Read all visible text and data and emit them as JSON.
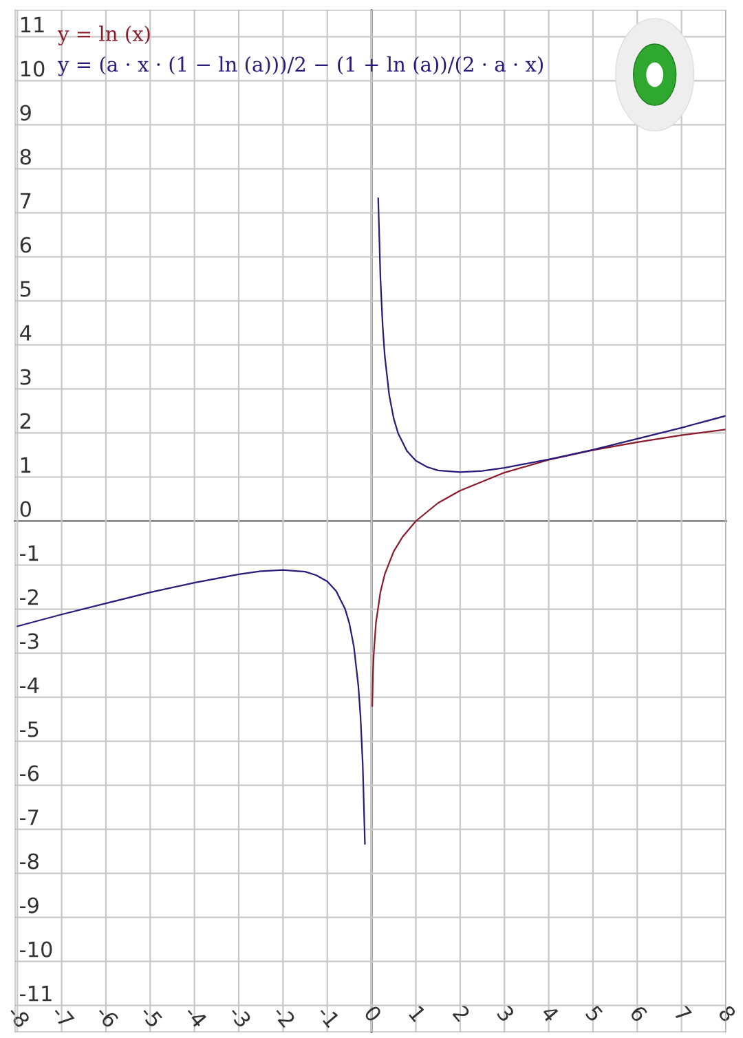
{
  "chart_data": {
    "type": "line",
    "xlim": [
      -8.05,
      8.0
    ],
    "ylim": [
      -11.6,
      11.6
    ],
    "xticks": [
      -8,
      -7,
      -6,
      -5,
      -4,
      -3,
      -2,
      -1,
      0,
      1,
      2,
      3,
      4,
      5,
      6,
      7,
      8
    ],
    "yticks": [
      -11,
      -10,
      -9,
      -8,
      -7,
      -6,
      -5,
      -4,
      -3,
      -2,
      -1,
      0,
      1,
      2,
      3,
      4,
      5,
      6,
      7,
      8,
      9,
      10,
      11
    ],
    "grid": true,
    "legend": "top left",
    "marker": "none",
    "line_style": "solid",
    "series": [
      {
        "name": "y = ln (x)",
        "color": "#8b1a2b",
        "x": [
          0.015,
          0.03,
          0.05,
          0.1,
          0.2,
          0.3,
          0.5,
          0.7,
          1,
          1.5,
          2,
          3,
          4,
          5,
          6,
          7,
          8
        ],
        "values": [
          -4.2,
          -3.51,
          -3.0,
          -2.3,
          -1.61,
          -1.2,
          -0.69,
          -0.36,
          0,
          0.41,
          0.69,
          1.1,
          1.39,
          1.61,
          1.79,
          1.95,
          2.08
        ]
      },
      {
        "name": "y = (a · x · (1 − ln (a)))/2 − (1 + ln (a))/(2 · a · x)",
        "color": "#2a1a7a",
        "x": [
          -8,
          -7,
          -6,
          -5,
          -4,
          -3,
          -2.5,
          -2,
          -1.5,
          -1.25,
          -1,
          -0.8,
          -0.6,
          -0.5,
          -0.4,
          -0.3,
          -0.25,
          -0.2,
          -0.15,
          0,
          0.15,
          0.2,
          0.25,
          0.3,
          0.4,
          0.5,
          0.6,
          0.8,
          1,
          1.25,
          1.5,
          2,
          2.5,
          3,
          4,
          5,
          6,
          7,
          8
        ],
        "values": [
          -2.39,
          -2.12,
          -1.87,
          -1.62,
          -1.4,
          -1.21,
          -1.14,
          -1.11,
          -1.15,
          -1.23,
          -1.37,
          -1.59,
          -1.99,
          -2.33,
          -2.85,
          -3.73,
          -4.44,
          -5.52,
          -7.33,
          null,
          7.33,
          5.52,
          4.44,
          3.73,
          2.85,
          2.33,
          1.99,
          1.59,
          1.37,
          1.23,
          1.15,
          1.11,
          1.14,
          1.21,
          1.4,
          1.62,
          1.87,
          2.12,
          2.39
        ]
      }
    ]
  }
}
